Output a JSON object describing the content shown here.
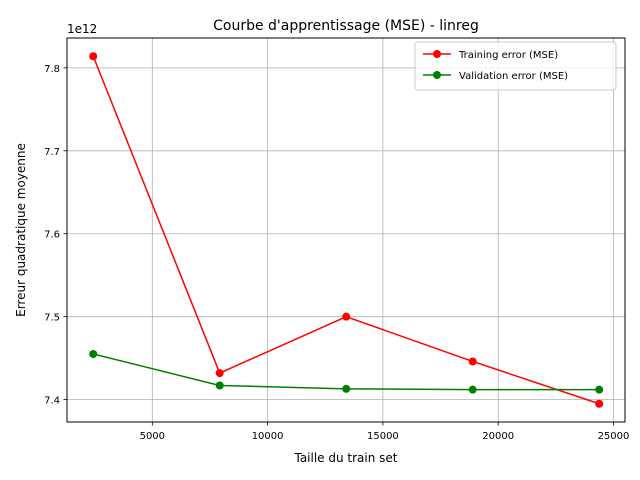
{
  "chart_data": {
    "type": "line",
    "title": "Courbe d'apprentissage (MSE) - linreg",
    "xlabel": "Taille du train set",
    "ylabel": "Erreur quadratique moyenne",
    "y_offset_label": "1e12",
    "y_scale_factor": 1000000000000.0,
    "xlim": [
      1300,
      25500
    ],
    "ylim": [
      7.373,
      7.836
    ],
    "x_ticks": [
      5000,
      10000,
      15000,
      20000,
      25000
    ],
    "y_ticks": [
      7.4,
      7.5,
      7.6,
      7.7,
      7.8
    ],
    "x_tick_labels": [
      "5000",
      "10000",
      "15000",
      "20000",
      "25000"
    ],
    "y_tick_labels": [
      "7.4",
      "7.5",
      "7.6",
      "7.7",
      "7.8"
    ],
    "grid": true,
    "legend_position": "top-right",
    "x": [
      2437,
      7923,
      13409,
      18895,
      24381
    ],
    "series": [
      {
        "name": "Training error (MSE)",
        "color": "#ff0000",
        "marker": "circle",
        "values": [
          7.814,
          7.432,
          7.5,
          7.446,
          7.395
        ]
      },
      {
        "name": "Validation error (MSE)",
        "color": "#008000",
        "marker": "circle",
        "values": [
          7.455,
          7.417,
          7.413,
          7.412,
          7.412
        ]
      }
    ]
  }
}
